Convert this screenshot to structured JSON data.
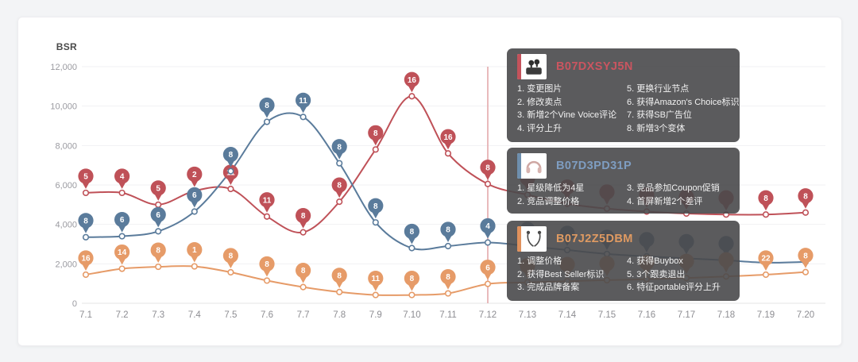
{
  "chart_data": {
    "type": "line",
    "ylabel": "BSR",
    "y_ticks": [
      "12,000",
      "10,000",
      "8,000",
      "6,000",
      "4,000",
      "2,000",
      "0"
    ],
    "ylim": [
      0,
      12000
    ],
    "grid": true,
    "marker_line_x": "7.12",
    "marker_line_color": "#e2a3a6",
    "categories": [
      "7.1",
      "7.2",
      "7.3",
      "7.4",
      "7.5",
      "7.6",
      "7.7",
      "7.8",
      "7.9",
      "7.10",
      "7.11",
      "7.12",
      "7.13",
      "7.14",
      "7.15",
      "7.16",
      "7.17",
      "7.18",
      "7.19",
      "7.20"
    ],
    "series": [
      {
        "name": "B07DXSYJ5N",
        "color": "#bf5158",
        "values": [
          5600,
          5600,
          5000,
          5700,
          5800,
          4400,
          3600,
          5150,
          7800,
          10500,
          7600,
          6050,
          5500,
          5050,
          4800,
          4650,
          4550,
          4500,
          4500,
          4600
        ],
        "pins": [
          "5",
          "4",
          "5",
          "2",
          "11",
          "11",
          "8",
          "8",
          "8",
          "16",
          "16",
          "8",
          "",
          "",
          "",
          "",
          "",
          "",
          "8",
          "8"
        ]
      },
      {
        "name": "B07D3PD31P",
        "color": "#5a7b9b",
        "values": [
          3350,
          3400,
          3650,
          4650,
          6700,
          9200,
          9450,
          7100,
          4100,
          2800,
          2900,
          3080,
          2900,
          2700,
          2500,
          2380,
          2280,
          2180,
          2060,
          2100
        ],
        "pins": [
          "8",
          "6",
          "6",
          "6",
          "8",
          "8",
          "11",
          "8",
          "8",
          "8",
          "8",
          "4",
          "",
          "",
          "",
          "",
          "",
          "",
          null,
          null
        ]
      },
      {
        "name": "B07J2Z5DBM",
        "color": "#e69b68",
        "values": [
          1450,
          1750,
          1850,
          1870,
          1570,
          1150,
          820,
          570,
          420,
          420,
          500,
          980,
          1060,
          1120,
          1170,
          1220,
          1280,
          1360,
          1450,
          1580
        ],
        "pins": [
          "16",
          "14",
          "8",
          "1",
          "8",
          "8",
          "8",
          "8",
          "11",
          "8",
          "8",
          "6",
          "",
          "",
          "",
          "",
          "",
          "",
          "22",
          "8"
        ]
      }
    ]
  },
  "panels": [
    {
      "title": "B07DXSYJ5N",
      "title_color": "#ca5560",
      "accent": "#c4525b",
      "thumb_icon": "earbuds-case-photo",
      "items_left": [
        "1. 变更图片",
        "2. 修改卖点",
        "3. 新增2个Vine Voice评论",
        "4. 评分上升"
      ],
      "items_right": [
        "5. 更换行业节点",
        "6. 获得Amazon's Choice标识",
        "7. 获得SB广告位",
        "8. 新增3个变体"
      ]
    },
    {
      "title": "B07D3PD31P",
      "title_color": "#7e9dc1",
      "accent": "#6e8fae",
      "thumb_icon": "headphones-photo",
      "items_left": [
        "1. 星级降低为4星",
        "2. 竞品调整价格"
      ],
      "items_right": [
        "3. 竞品参加Coupon促销",
        "4. 首屏新增2个差评"
      ]
    },
    {
      "title": "B07J2Z5DBM",
      "title_color": "#df9a62",
      "accent": "#e0915c",
      "thumb_icon": "neckband-earbuds-photo",
      "items_left": [
        "1. 调整价格",
        "2. 获得Best Seller标识",
        "3. 完成品牌备案"
      ],
      "items_right": [
        "4. 获得Buybox",
        "5. 3个跟卖退出",
        "6. 特征portable评分上升"
      ]
    }
  ]
}
